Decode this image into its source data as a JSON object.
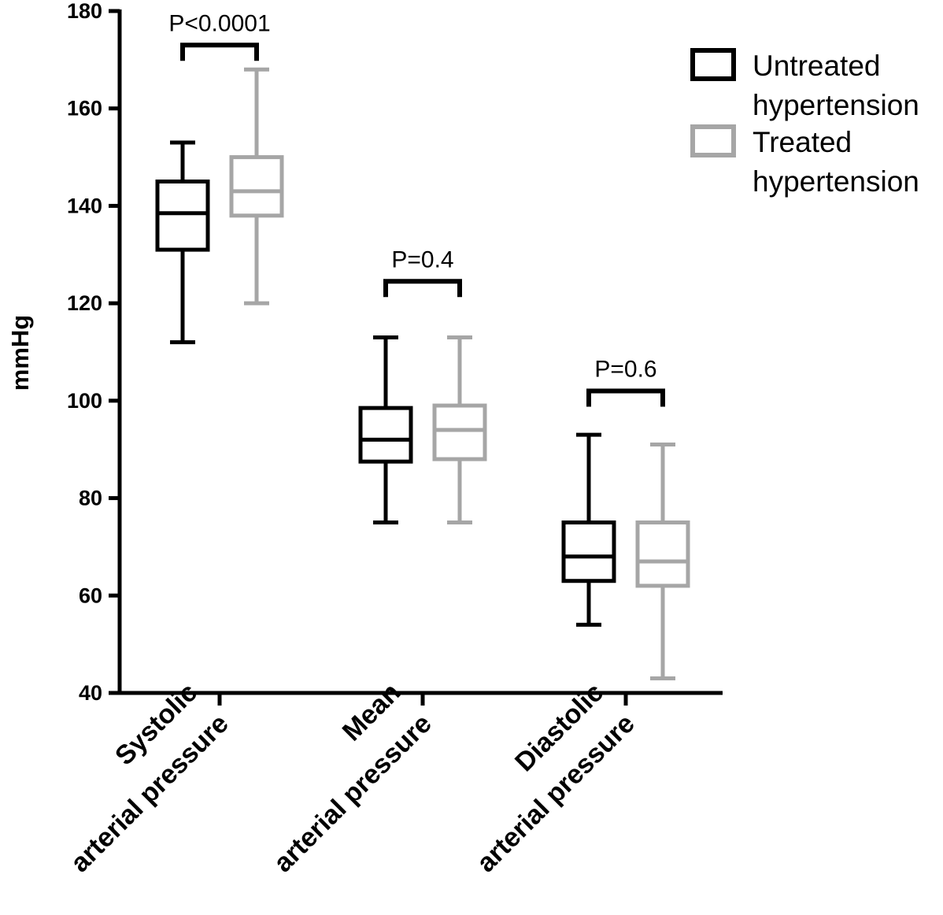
{
  "chart_data": {
    "type": "box",
    "ylabel": "mmHg",
    "ylim": [
      40,
      180
    ],
    "yticks": [
      40,
      60,
      80,
      100,
      120,
      140,
      160,
      180
    ],
    "categories": [
      [
        "Systolic",
        "arterial pressure"
      ],
      [
        "Mean",
        "arterial pressure"
      ],
      [
        "Diastolic",
        "arterial pressure"
      ]
    ],
    "series": [
      {
        "name": "Untreated hypertension",
        "color": "#000000",
        "boxes": [
          {
            "min": 112,
            "q1": 131,
            "median": 138.5,
            "q3": 145,
            "max": 153
          },
          {
            "min": 75,
            "q1": 87.5,
            "median": 92,
            "q3": 98.5,
            "max": 113
          },
          {
            "min": 54,
            "q1": 63,
            "median": 68,
            "q3": 75,
            "max": 93
          }
        ]
      },
      {
        "name": "Treated hypertension",
        "color": "#a6a6a6",
        "boxes": [
          {
            "min": 120,
            "q1": 138,
            "median": 143,
            "q3": 150,
            "max": 168
          },
          {
            "min": 75,
            "q1": 88,
            "median": 94,
            "q3": 99,
            "max": 113
          },
          {
            "min": 43,
            "q1": 62,
            "median": 67,
            "q3": 75,
            "max": 91
          }
        ]
      }
    ],
    "annotations": [
      {
        "text": "P<0.0001",
        "category": 0,
        "bracket_y": 173
      },
      {
        "text": "P=0.4",
        "category": 1,
        "bracket_y": 124.5
      },
      {
        "text": "P=0.6",
        "category": 2,
        "bracket_y": 102
      }
    ],
    "legend": {
      "position": "top-right",
      "entries": [
        [
          "Untreated",
          "hypertension"
        ],
        [
          "Treated",
          "hypertension"
        ]
      ]
    }
  }
}
